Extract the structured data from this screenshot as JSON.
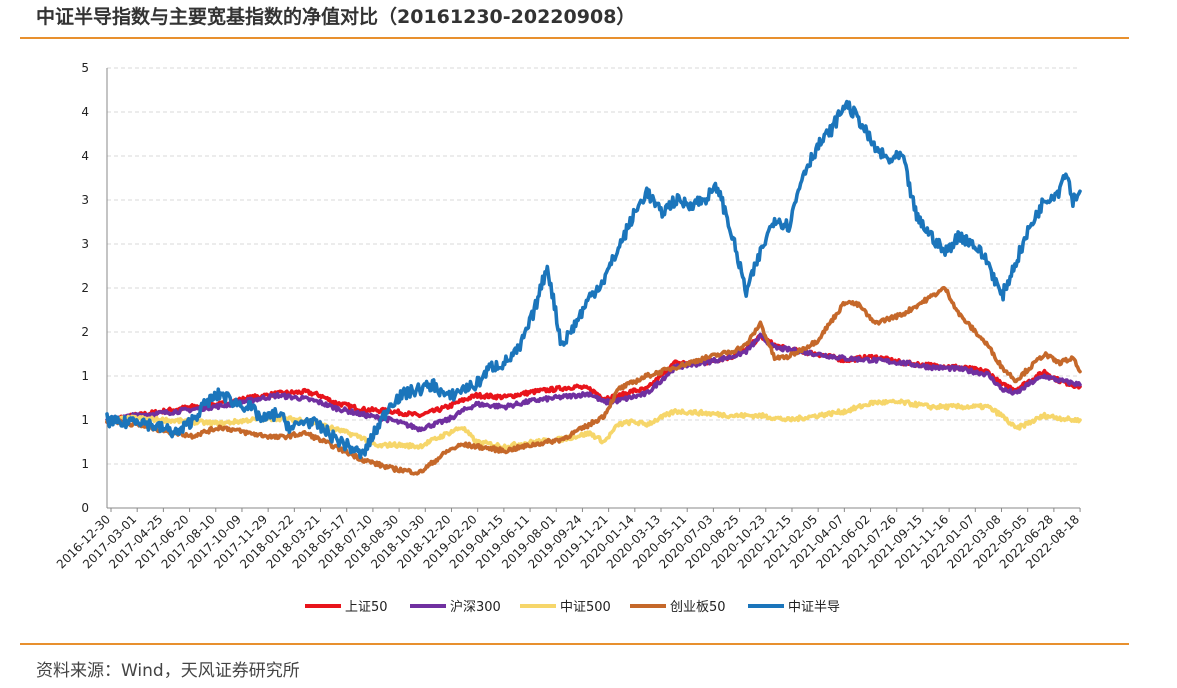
{
  "header": {
    "title": "中证半导指数与主要宽基指数的净值对比（20161230-20220908）"
  },
  "footer": {
    "source": "资料来源：Wind，天风证券研究所"
  },
  "chart_data": {
    "type": "line",
    "title": "中证半导指数与主要宽基指数的净值对比（20161230-20220908）",
    "xlabel": "",
    "ylabel": "",
    "ylim": [
      0,
      5
    ],
    "y_ticks": [
      0,
      0.5,
      1,
      1.5,
      2,
      2.5,
      3,
      3.5,
      4,
      4.5,
      5
    ],
    "y_tick_labels": [
      "0",
      "1",
      "1",
      "1",
      "2",
      "2",
      "3",
      "3",
      "4",
      "4",
      "5"
    ],
    "x_tick_labels": [
      "2016-12-30",
      "2017-03-01",
      "2017-04-25",
      "2017-06-20",
      "2017-08-10",
      "2017-10-09",
      "2017-11-29",
      "2018-01-22",
      "2018-03-21",
      "2018-05-17",
      "2018-07-10",
      "2018-08-30",
      "2018-10-30",
      "2018-12-20",
      "2019-02-20",
      "2019-04-15",
      "2019-06-11",
      "2019-08-01",
      "2019-09-24",
      "2019-11-21",
      "2020-01-14",
      "2020-03-13",
      "2020-05-11",
      "2020-07-03",
      "2020-08-25",
      "2020-10-23",
      "2020-12-15",
      "2021-02-05",
      "2021-04-07",
      "2021-06-02",
      "2021-07-26",
      "2021-09-15",
      "2021-11-16",
      "2022-01-07",
      "2022-03-08",
      "2022-05-05",
      "2022-06-28",
      "2022-08-18"
    ],
    "x_range": [
      0,
      68.5
    ],
    "grid": true,
    "legend_position": "bottom",
    "series": [
      {
        "name": "上证50",
        "color": "#e8141b",
        "x": [
          0,
          2,
          4,
          6,
          8,
          10,
          12,
          14,
          15,
          16,
          18,
          20,
          22,
          24,
          25,
          26,
          28,
          30,
          32,
          33,
          34,
          35,
          36,
          37,
          38,
          40,
          42,
          44,
          45,
          46,
          47,
          48,
          50,
          52,
          53,
          54,
          56,
          58,
          60,
          62,
          63,
          64,
          65,
          66,
          67,
          68,
          68.5
        ],
        "values": [
          1.0,
          1.05,
          1.1,
          1.15,
          1.18,
          1.25,
          1.3,
          1.32,
          1.28,
          1.2,
          1.12,
          1.1,
          1.05,
          1.15,
          1.22,
          1.28,
          1.26,
          1.32,
          1.36,
          1.38,
          1.35,
          1.25,
          1.27,
          1.33,
          1.35,
          1.65,
          1.65,
          1.72,
          1.8,
          1.95,
          1.85,
          1.8,
          1.75,
          1.68,
          1.7,
          1.72,
          1.65,
          1.62,
          1.6,
          1.55,
          1.4,
          1.35,
          1.45,
          1.55,
          1.45,
          1.4,
          1.38
        ]
      },
      {
        "name": "沪深300",
        "color": "#7030a0",
        "x": [
          0,
          2,
          4,
          6,
          8,
          10,
          12,
          14,
          15,
          16,
          18,
          20,
          22,
          24,
          25,
          26,
          28,
          30,
          32,
          34,
          35,
          36,
          38,
          40,
          42,
          44,
          45,
          46,
          47,
          48,
          50,
          52,
          54,
          56,
          58,
          60,
          62,
          63,
          64,
          65,
          66,
          67,
          68,
          68.5
        ],
        "values": [
          1.0,
          1.05,
          1.08,
          1.12,
          1.16,
          1.22,
          1.28,
          1.24,
          1.2,
          1.14,
          1.06,
          1.0,
          0.9,
          1.0,
          1.1,
          1.18,
          1.15,
          1.22,
          1.26,
          1.3,
          1.2,
          1.22,
          1.3,
          1.6,
          1.65,
          1.72,
          1.78,
          1.95,
          1.82,
          1.8,
          1.75,
          1.7,
          1.68,
          1.65,
          1.6,
          1.58,
          1.52,
          1.35,
          1.3,
          1.42,
          1.5,
          1.45,
          1.42,
          1.4
        ]
      },
      {
        "name": "中证500",
        "color": "#f6d66a",
        "x": [
          0,
          2,
          4,
          6,
          8,
          10,
          12,
          14,
          16,
          18,
          19,
          20,
          22,
          24,
          25,
          26,
          28,
          30,
          32,
          34,
          35,
          36,
          37,
          38,
          40,
          42,
          44,
          46,
          48,
          50,
          52,
          54,
          56,
          58,
          60,
          62,
          63,
          64,
          66,
          68,
          68.5
        ],
        "values": [
          1.0,
          1.02,
          1.0,
          0.98,
          0.96,
          1.0,
          1.02,
          1.0,
          0.9,
          0.8,
          0.7,
          0.72,
          0.7,
          0.85,
          0.92,
          0.75,
          0.7,
          0.75,
          0.78,
          0.85,
          0.75,
          0.95,
          0.98,
          0.95,
          1.1,
          1.08,
          1.05,
          1.05,
          1.0,
          1.05,
          1.1,
          1.2,
          1.2,
          1.15,
          1.15,
          1.15,
          1.05,
          0.9,
          1.05,
          1.0,
          1.0
        ]
      },
      {
        "name": "创业板50",
        "color": "#c5682a",
        "x": [
          0,
          2,
          4,
          6,
          8,
          10,
          12,
          14,
          16,
          18,
          20,
          22,
          24,
          25,
          26,
          28,
          30,
          32,
          34,
          35,
          36,
          38,
          40,
          42,
          44,
          45,
          46,
          47,
          48,
          50,
          52,
          53,
          54,
          56,
          58,
          59,
          60,
          62,
          63,
          64,
          65,
          66,
          67,
          68,
          68.5
        ],
        "values": [
          1.0,
          0.95,
          0.88,
          0.82,
          0.92,
          0.85,
          0.8,
          0.85,
          0.7,
          0.55,
          0.45,
          0.4,
          0.65,
          0.72,
          0.7,
          0.65,
          0.72,
          0.78,
          0.95,
          1.05,
          1.35,
          1.5,
          1.6,
          1.7,
          1.78,
          1.85,
          2.1,
          1.7,
          1.72,
          1.9,
          2.35,
          2.3,
          2.1,
          2.2,
          2.4,
          2.5,
          2.2,
          1.85,
          1.6,
          1.45,
          1.6,
          1.75,
          1.65,
          1.7,
          1.55
        ]
      },
      {
        "name": "中证半导",
        "color": "#1b75bb",
        "x": [
          0,
          1,
          2,
          3,
          4,
          5,
          6,
          7,
          8,
          9,
          10,
          11,
          12,
          13,
          14,
          15,
          16,
          17,
          18,
          19,
          20,
          21,
          22,
          23,
          24,
          25,
          26,
          27,
          28,
          29,
          30,
          31,
          32,
          33,
          34,
          35,
          36,
          37,
          38,
          39,
          40,
          41,
          42,
          43,
          44,
          45,
          46,
          47,
          48,
          49,
          50,
          51,
          52,
          53,
          54,
          55,
          56,
          57,
          58,
          59,
          60,
          61,
          62,
          63,
          64,
          65,
          66,
          67,
          67.5,
          68,
          68.5
        ],
        "values": [
          1.0,
          0.95,
          1.02,
          0.95,
          0.9,
          0.85,
          1.0,
          1.2,
          1.3,
          1.2,
          1.15,
          1.0,
          1.08,
          0.9,
          1.0,
          0.92,
          0.8,
          0.7,
          0.6,
          0.9,
          1.2,
          1.3,
          1.35,
          1.4,
          1.25,
          1.35,
          1.4,
          1.6,
          1.65,
          1.8,
          2.2,
          2.75,
          1.85,
          2.1,
          2.4,
          2.6,
          2.95,
          3.3,
          3.6,
          3.35,
          3.5,
          3.45,
          3.5,
          3.65,
          3.1,
          2.45,
          2.9,
          3.3,
          3.2,
          3.8,
          4.1,
          4.3,
          4.6,
          4.4,
          4.1,
          3.95,
          4.0,
          3.3,
          3.1,
          2.9,
          3.1,
          3.0,
          2.8,
          2.4,
          2.8,
          3.2,
          3.5,
          3.6,
          3.85,
          3.5,
          3.6
        ]
      }
    ]
  }
}
